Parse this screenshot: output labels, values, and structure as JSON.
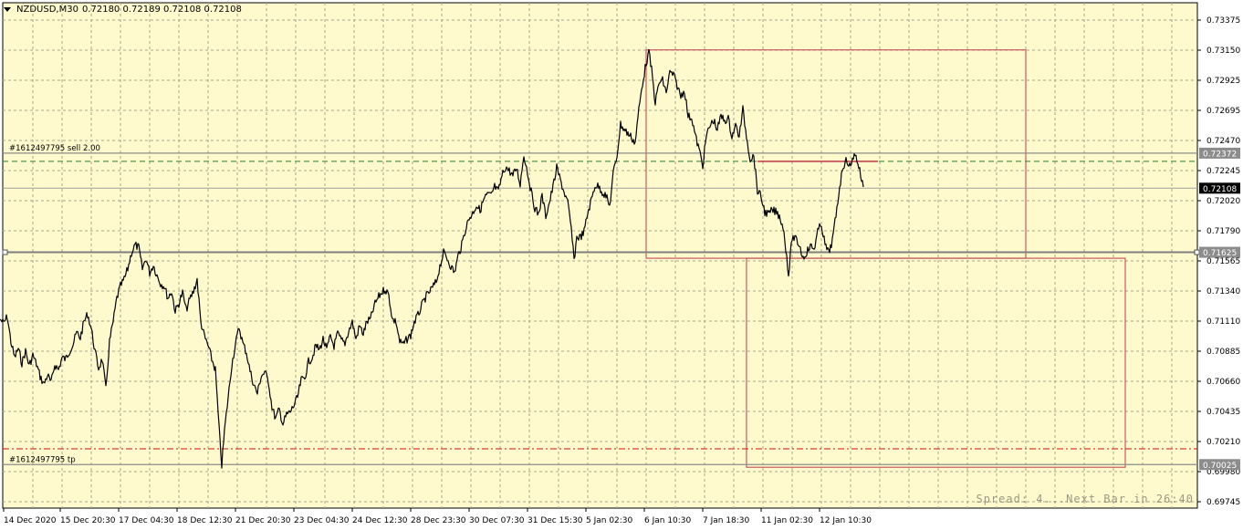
{
  "symbol_line": {
    "symbol": "NZDUSD,M30",
    "ohlc": "0.72180 0.72189 0.72108 0.72108"
  },
  "status_text": "Spread: 4...Next Bar in 26:40",
  "colors": {
    "background": "#fffacd",
    "grid": "#a9a58c",
    "candle_line": "#000000",
    "order_line": "#8c8c8c",
    "sell_line": "#2e7d32",
    "tp_line": "#d01010",
    "rectangle": "#c0394a",
    "price_tag_bg": "#000000",
    "level_tag_bg": "#8c8c8c"
  },
  "chart_data": {
    "type": "line",
    "title": "NZDUSD,M30",
    "y_range": [
      0.69745,
      0.73375
    ],
    "y_ticks": [
      "0.73375",
      "0.73150",
      "0.72925",
      "0.72695",
      "0.72470",
      "0.72245",
      "0.72020",
      "0.71790",
      "0.71565",
      "0.71340",
      "0.71110",
      "0.70885",
      "0.70660",
      "0.70435",
      "0.70210",
      "0.69980",
      "0.69745"
    ],
    "x_labels": [
      "14 Dec 2020",
      "15 Dec 20:30",
      "17 Dec 04:30",
      "18 Dec 12:30",
      "21 Dec 20:30",
      "23 Dec 04:30",
      "24 Dec 12:30",
      "28 Dec 23:30",
      "30 Dec 07:30",
      "31 Dec 15:30",
      "5 Jan 02:30",
      "6 Jan 10:30",
      "7 Jan 18:30",
      "11 Jan 02:30",
      "12 Jan 10:30"
    ],
    "grid": true,
    "current_price": "0.72108",
    "price_points": [
      [
        0,
        0.7112
      ],
      [
        4,
        0.7109
      ],
      [
        8,
        0.7114
      ],
      [
        12,
        0.7095
      ],
      [
        16,
        0.7083
      ],
      [
        20,
        0.709
      ],
      [
        24,
        0.7079
      ],
      [
        28,
        0.7088
      ],
      [
        32,
        0.7077
      ],
      [
        36,
        0.7085
      ],
      [
        40,
        0.7078
      ],
      [
        44,
        0.7069
      ],
      [
        48,
        0.7063
      ],
      [
        52,
        0.707
      ],
      [
        56,
        0.7064
      ],
      [
        60,
        0.7078
      ],
      [
        64,
        0.7074
      ],
      [
        68,
        0.7083
      ],
      [
        72,
        0.7082
      ],
      [
        76,
        0.7088
      ],
      [
        80,
        0.7093
      ],
      [
        84,
        0.7102
      ],
      [
        88,
        0.7098
      ],
      [
        92,
        0.711
      ],
      [
        96,
        0.7116
      ],
      [
        100,
        0.7105
      ],
      [
        104,
        0.7088
      ],
      [
        108,
        0.7075
      ],
      [
        112,
        0.7082
      ],
      [
        116,
        0.7059
      ],
      [
        120,
        0.7095
      ],
      [
        124,
        0.711
      ],
      [
        128,
        0.7128
      ],
      [
        132,
        0.7137
      ],
      [
        136,
        0.7142
      ],
      [
        140,
        0.715
      ],
      [
        144,
        0.7162
      ],
      [
        148,
        0.7168
      ],
      [
        152,
        0.7166
      ],
      [
        156,
        0.715
      ],
      [
        160,
        0.7158
      ],
      [
        164,
        0.7147
      ],
      [
        168,
        0.7153
      ],
      [
        172,
        0.7145
      ],
      [
        176,
        0.7139
      ],
      [
        180,
        0.7137
      ],
      [
        184,
        0.7128
      ],
      [
        188,
        0.7133
      ],
      [
        192,
        0.7118
      ],
      [
        196,
        0.7124
      ],
      [
        200,
        0.7132
      ],
      [
        204,
        0.7119
      ],
      [
        208,
        0.7127
      ],
      [
        212,
        0.7133
      ],
      [
        216,
        0.7142
      ],
      [
        220,
        0.711
      ],
      [
        224,
        0.7099
      ],
      [
        228,
        0.7092
      ],
      [
        232,
        0.7082
      ],
      [
        236,
        0.7074
      ],
      [
        240,
        0.703
      ],
      [
        243,
        0.7002
      ],
      [
        246,
        0.7028
      ],
      [
        250,
        0.7053
      ],
      [
        254,
        0.7078
      ],
      [
        258,
        0.7093
      ],
      [
        262,
        0.7106
      ],
      [
        266,
        0.7094
      ],
      [
        270,
        0.7087
      ],
      [
        274,
        0.7073
      ],
      [
        278,
        0.7063
      ],
      [
        282,
        0.7056
      ],
      [
        286,
        0.7069
      ],
      [
        290,
        0.7072
      ],
      [
        294,
        0.7066
      ],
      [
        298,
        0.7046
      ],
      [
        302,
        0.7037
      ],
      [
        306,
        0.7044
      ],
      [
        310,
        0.7033
      ],
      [
        314,
        0.704
      ],
      [
        318,
        0.7042
      ],
      [
        322,
        0.7047
      ],
      [
        326,
        0.7053
      ],
      [
        330,
        0.7066
      ],
      [
        334,
        0.7068
      ],
      [
        338,
        0.708
      ],
      [
        342,
        0.7083
      ],
      [
        346,
        0.7092
      ],
      [
        350,
        0.7089
      ],
      [
        354,
        0.7097
      ],
      [
        358,
        0.7089
      ],
      [
        362,
        0.7099
      ],
      [
        366,
        0.7092
      ],
      [
        370,
        0.7101
      ],
      [
        374,
        0.7096
      ],
      [
        378,
        0.7094
      ],
      [
        382,
        0.7103
      ],
      [
        386,
        0.711
      ],
      [
        390,
        0.7097
      ],
      [
        394,
        0.7107
      ],
      [
        398,
        0.7101
      ],
      [
        402,
        0.711
      ],
      [
        406,
        0.7112
      ],
      [
        410,
        0.7122
      ],
      [
        414,
        0.7128
      ],
      [
        418,
        0.7132
      ],
      [
        422,
        0.7135
      ],
      [
        426,
        0.713
      ],
      [
        430,
        0.7112
      ],
      [
        434,
        0.711
      ],
      [
        438,
        0.7095
      ],
      [
        442,
        0.7093
      ],
      [
        446,
        0.7097
      ],
      [
        450,
        0.71
      ],
      [
        454,
        0.711
      ],
      [
        458,
        0.7115
      ],
      [
        462,
        0.7122
      ],
      [
        466,
        0.7128
      ],
      [
        470,
        0.7132
      ],
      [
        474,
        0.7136
      ],
      [
        478,
        0.714
      ],
      [
        482,
        0.7152
      ],
      [
        486,
        0.7162
      ],
      [
        490,
        0.7158
      ],
      [
        494,
        0.7152
      ],
      [
        498,
        0.7147
      ],
      [
        502,
        0.716
      ],
      [
        506,
        0.7168
      ],
      [
        510,
        0.718
      ],
      [
        514,
        0.7188
      ],
      [
        518,
        0.7192
      ],
      [
        522,
        0.7198
      ],
      [
        526,
        0.7194
      ],
      [
        530,
        0.7202
      ],
      [
        534,
        0.7206
      ],
      [
        538,
        0.7205
      ],
      [
        542,
        0.7212
      ],
      [
        546,
        0.7208
      ],
      [
        550,
        0.722
      ],
      [
        554,
        0.7227
      ],
      [
        558,
        0.7224
      ],
      [
        562,
        0.722
      ],
      [
        566,
        0.7226
      ],
      [
        570,
        0.7214
      ],
      [
        574,
        0.7236
      ],
      [
        578,
        0.7223
      ],
      [
        582,
        0.7208
      ],
      [
        586,
        0.7196
      ],
      [
        590,
        0.7191
      ],
      [
        594,
        0.7205
      ],
      [
        598,
        0.719
      ],
      [
        602,
        0.72
      ],
      [
        606,
        0.7212
      ],
      [
        610,
        0.7226
      ],
      [
        614,
        0.7217
      ],
      [
        618,
        0.7208
      ],
      [
        622,
        0.72
      ],
      [
        626,
        0.718
      ],
      [
        629,
        0.7156
      ],
      [
        632,
        0.7174
      ],
      [
        636,
        0.7174
      ],
      [
        640,
        0.7178
      ],
      [
        644,
        0.7192
      ],
      [
        648,
        0.7202
      ],
      [
        652,
        0.7213
      ],
      [
        656,
        0.7212
      ],
      [
        660,
        0.7208
      ],
      [
        664,
        0.7205
      ],
      [
        668,
        0.7197
      ],
      [
        672,
        0.7222
      ],
      [
        676,
        0.7235
      ],
      [
        680,
        0.7259
      ],
      [
        684,
        0.7255
      ],
      [
        688,
        0.7252
      ],
      [
        692,
        0.7249
      ],
      [
        696,
        0.7245
      ],
      [
        700,
        0.727
      ],
      [
        704,
        0.729
      ],
      [
        708,
        0.7305
      ],
      [
        711,
        0.7313
      ],
      [
        714,
        0.73
      ],
      [
        718,
        0.7275
      ],
      [
        722,
        0.729
      ],
      [
        726,
        0.7292
      ],
      [
        730,
        0.7283
      ],
      [
        734,
        0.7298
      ],
      [
        738,
        0.7296
      ],
      [
        742,
        0.7288
      ],
      [
        746,
        0.728
      ],
      [
        750,
        0.7285
      ],
      [
        754,
        0.7265
      ],
      [
        758,
        0.7264
      ],
      [
        762,
        0.725
      ],
      [
        766,
        0.724
      ],
      [
        770,
        0.7228
      ],
      [
        774,
        0.725
      ],
      [
        778,
        0.7258
      ],
      [
        782,
        0.7262
      ],
      [
        786,
        0.7255
      ],
      [
        790,
        0.7265
      ],
      [
        794,
        0.7262
      ],
      [
        798,
        0.7263
      ],
      [
        802,
        0.725
      ],
      [
        806,
        0.7258
      ],
      [
        810,
        0.725
      ],
      [
        814,
        0.727
      ],
      [
        818,
        0.725
      ],
      [
        822,
        0.7233
      ],
      [
        826,
        0.7235
      ],
      [
        830,
        0.7209
      ],
      [
        834,
        0.7204
      ],
      [
        838,
        0.7193
      ],
      [
        842,
        0.7191
      ],
      [
        846,
        0.7194
      ],
      [
        850,
        0.7193
      ],
      [
        854,
        0.719
      ],
      [
        858,
        0.7182
      ],
      [
        862,
        0.716
      ],
      [
        864,
        0.7145
      ],
      [
        868,
        0.7174
      ],
      [
        872,
        0.7172
      ],
      [
        876,
        0.7168
      ],
      [
        880,
        0.7158
      ],
      [
        884,
        0.7163
      ],
      [
        888,
        0.7167
      ],
      [
        892,
        0.7165
      ],
      [
        896,
        0.7178
      ],
      [
        900,
        0.7184
      ],
      [
        904,
        0.7168
      ],
      [
        908,
        0.7162
      ],
      [
        912,
        0.7171
      ],
      [
        916,
        0.719
      ],
      [
        920,
        0.7212
      ],
      [
        924,
        0.7228
      ],
      [
        928,
        0.7232
      ],
      [
        932,
        0.7226
      ],
      [
        936,
        0.7238
      ],
      [
        940,
        0.723
      ],
      [
        943,
        0.7221
      ],
      [
        946,
        0.7211
      ]
    ],
    "orders": [
      {
        "label": "#1612497795 sell 2.00",
        "price": 0.72372,
        "tag": "0.72372"
      },
      {
        "label": "#1612497795 tp",
        "price": 0.70025,
        "tag": "0.70025"
      }
    ],
    "sell_dashed_price": 0.7231,
    "tp_dashed_price": 0.70144,
    "levels": [
      {
        "price": 0.71625,
        "tag": "0.71625"
      },
      {
        "price": 0.72108,
        "tag": "0.72108"
      }
    ],
    "trend_segment": {
      "x0": 830,
      "x1": 962,
      "price": 0.7231
    },
    "rectangles": [
      {
        "x0": 708,
        "x1": 1124,
        "p_top": 0.7315,
        "p_bottom": 0.7158
      },
      {
        "x0": 818,
        "x1": 1233,
        "p_top": 0.7158,
        "p_bottom": 0.70005
      }
    ]
  }
}
